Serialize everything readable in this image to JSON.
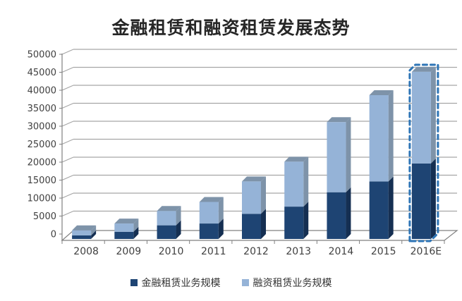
{
  "title": "金融租赁和融资租赁发展态势",
  "chart_data": {
    "type": "bar",
    "stacked": true,
    "title": "金融租赁和融资租赁发展态势",
    "categories": [
      "2008",
      "2009",
      "2010",
      "2011",
      "2012",
      "2013",
      "2014",
      "2015",
      "2016E"
    ],
    "series": [
      {
        "name": "金融租赁业务规模",
        "values": [
          1000,
          2000,
          3800,
          4300,
          7000,
          9000,
          13000,
          16000,
          21000
        ],
        "color": "#1E4473",
        "shade_color": "#152F52"
      },
      {
        "name": "融资租赁业务规模",
        "values": [
          1400,
          2300,
          4000,
          6000,
          9000,
          12500,
          19500,
          24000,
          25500
        ],
        "color": "#95B3D7",
        "shade_color": "#7E93A9"
      }
    ],
    "totals": [
      2400,
      4300,
      7800,
      10300,
      16000,
      21500,
      32500,
      40000,
      46500
    ],
    "xlabel": "",
    "ylabel": "",
    "ylim": [
      0,
      50000
    ],
    "ytick_step": 5000,
    "yticks": [
      "0",
      "5000",
      "10000",
      "15000",
      "20000",
      "25000",
      "30000",
      "35000",
      "40000",
      "45000",
      "50000"
    ],
    "grid": true,
    "legend_position": "bottom",
    "highlight": {
      "category": "2016E",
      "style": "dashed-outline",
      "color": "#2E75B6"
    },
    "colors": {
      "background": "#FFFFFF",
      "gridline": "#A6A6A6",
      "axis": "#808080",
      "tick_label": "#404040",
      "legend_text": "#333333",
      "title_text": "#262626"
    }
  }
}
